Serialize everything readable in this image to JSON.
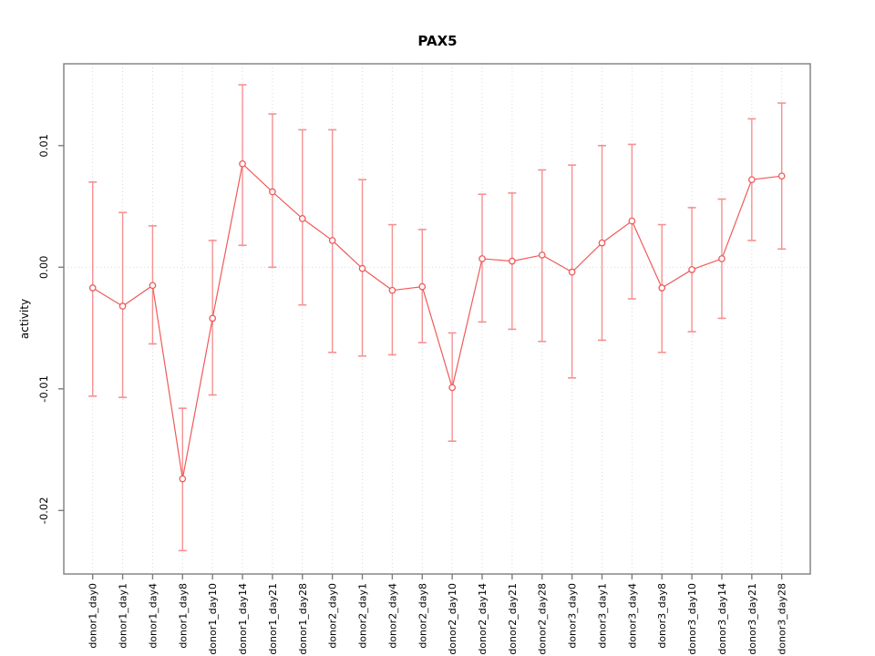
{
  "chart_data": {
    "type": "line",
    "title": "PAX5",
    "xlabel": "",
    "ylabel": "activity",
    "ylim": [
      -0.0252,
      0.0167
    ],
    "grid": "vertical-dotted-per-category, dotted-zero-line",
    "legend": "none",
    "yticks": [
      {
        "value": 0.01,
        "label": "0.01"
      },
      {
        "value": 0.0,
        "label": "0.00"
      },
      {
        "value": -0.01,
        "label": "-0.01"
      },
      {
        "value": -0.02,
        "label": "-0.02"
      }
    ],
    "series_name": "activity with confidence intervals",
    "points": [
      {
        "label": "donor1_day0",
        "value": -0.0017,
        "lo": -0.0106,
        "hi": 0.007
      },
      {
        "label": "donor1_day1",
        "value": -0.0032,
        "lo": -0.0107,
        "hi": 0.0045
      },
      {
        "label": "donor1_day4",
        "value": -0.0015,
        "lo": -0.0063,
        "hi": 0.0034
      },
      {
        "label": "donor1_day8",
        "value": -0.0174,
        "lo": -0.0233,
        "hi": -0.0116
      },
      {
        "label": "donor1_day10",
        "value": -0.0042,
        "lo": -0.0105,
        "hi": 0.0022
      },
      {
        "label": "donor1_day14",
        "value": 0.0085,
        "lo": 0.0018,
        "hi": 0.015
      },
      {
        "label": "donor1_day21",
        "value": 0.0062,
        "lo": 0.0,
        "hi": 0.0126
      },
      {
        "label": "donor1_day28",
        "value": 0.004,
        "lo": -0.0031,
        "hi": 0.0113
      },
      {
        "label": "donor2_day0",
        "value": 0.0022,
        "lo": -0.007,
        "hi": 0.0113
      },
      {
        "label": "donor2_day1",
        "value": -0.0001,
        "lo": -0.0073,
        "hi": 0.0072
      },
      {
        "label": "donor2_day4",
        "value": -0.0019,
        "lo": -0.0072,
        "hi": 0.0035
      },
      {
        "label": "donor2_day8",
        "value": -0.0016,
        "lo": -0.0062,
        "hi": 0.0031
      },
      {
        "label": "donor2_day10",
        "value": -0.0099,
        "lo": -0.0143,
        "hi": -0.0054
      },
      {
        "label": "donor2_day14",
        "value": 0.0007,
        "lo": -0.0045,
        "hi": 0.006
      },
      {
        "label": "donor2_day21",
        "value": 0.0005,
        "lo": -0.0051,
        "hi": 0.0061
      },
      {
        "label": "donor2_day28",
        "value": 0.001,
        "lo": -0.0061,
        "hi": 0.008
      },
      {
        "label": "donor3_day0",
        "value": -0.0004,
        "lo": -0.0091,
        "hi": 0.0084
      },
      {
        "label": "donor3_day1",
        "value": 0.002,
        "lo": -0.006,
        "hi": 0.01
      },
      {
        "label": "donor3_day4",
        "value": 0.0038,
        "lo": -0.0026,
        "hi": 0.0101
      },
      {
        "label": "donor3_day8",
        "value": -0.0017,
        "lo": -0.007,
        "hi": 0.0035
      },
      {
        "label": "donor3_day10",
        "value": -0.0002,
        "lo": -0.0053,
        "hi": 0.0049
      },
      {
        "label": "donor3_day14",
        "value": 0.0007,
        "lo": -0.0042,
        "hi": 0.0056
      },
      {
        "label": "donor3_day21",
        "value": 0.0072,
        "lo": 0.0022,
        "hi": 0.0122
      },
      {
        "label": "donor3_day28",
        "value": 0.0075,
        "lo": 0.0015,
        "hi": 0.0135
      }
    ],
    "colors": {
      "line": "#ef5a5a",
      "marker": "#ef5a5a",
      "error_bar": "#f59191",
      "grid": "#dadada",
      "axis": "#7d7d7d",
      "text": "#000000",
      "background": "#ffffff"
    }
  }
}
